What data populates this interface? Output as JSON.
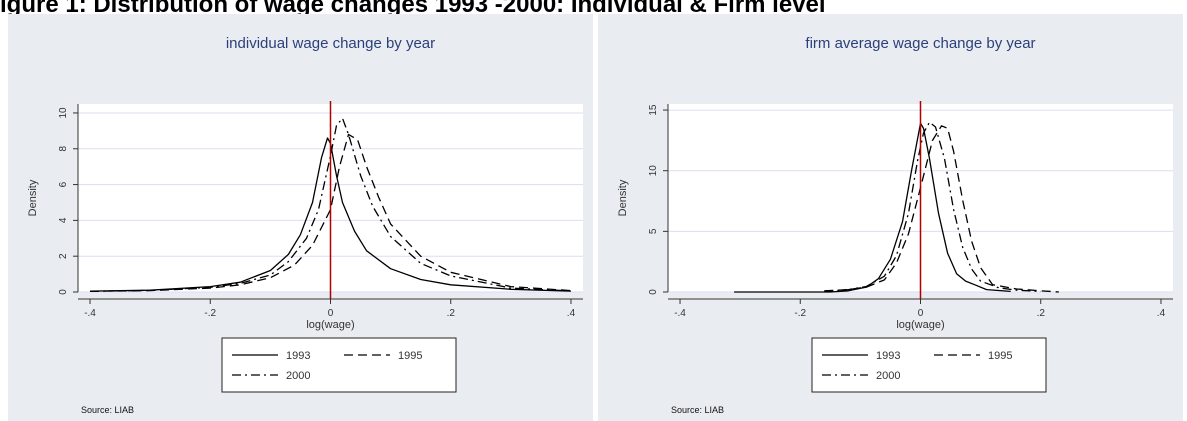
{
  "page_heading": "igure 1: Distribution of wage changes 1993 -2000: Individual & Firm level",
  "chart_data": [
    {
      "type": "line",
      "title": "individual wage  change by year",
      "xlabel": "log(wage)",
      "ylabel": "Density",
      "xlim": [
        -0.42,
        0.42
      ],
      "ylim": [
        0,
        10.5
      ],
      "xticks": [
        -0.4,
        -0.2,
        0,
        0.2,
        0.4
      ],
      "xtick_labels": [
        "-.4",
        "-.2",
        "0",
        ".2",
        ".4"
      ],
      "yticks": [
        0,
        2,
        4,
        6,
        8,
        10
      ],
      "ytick_labels": [
        "0",
        "2",
        "4",
        "6",
        "8",
        "10"
      ],
      "grid": "horizontal",
      "reference_line": {
        "x": 0,
        "color": "#b00000"
      },
      "legend_position": "bottom",
      "series": [
        {
          "name": "1993",
          "dash": "solid",
          "x": [
            -0.4,
            -0.3,
            -0.2,
            -0.15,
            -0.1,
            -0.07,
            -0.05,
            -0.03,
            -0.015,
            -0.005,
            0,
            0.01,
            0.02,
            0.04,
            0.06,
            0.1,
            0.15,
            0.2,
            0.3,
            0.4
          ],
          "y": [
            0.05,
            0.1,
            0.3,
            0.55,
            1.2,
            2.1,
            3.2,
            5.0,
            7.5,
            8.6,
            8.3,
            6.5,
            5.0,
            3.4,
            2.3,
            1.3,
            0.7,
            0.4,
            0.15,
            0.05
          ]
        },
        {
          "name": "1995",
          "dash": "long-dash",
          "x": [
            -0.4,
            -0.3,
            -0.2,
            -0.15,
            -0.1,
            -0.06,
            -0.03,
            0,
            0.015,
            0.03,
            0.045,
            0.06,
            0.08,
            0.1,
            0.15,
            0.2,
            0.3,
            0.4
          ],
          "y": [
            0.04,
            0.08,
            0.22,
            0.4,
            0.8,
            1.5,
            2.6,
            4.6,
            7.0,
            8.8,
            8.5,
            7.0,
            5.3,
            3.8,
            2.0,
            1.1,
            0.3,
            0.08
          ]
        },
        {
          "name": "2000",
          "dash": "dash-dot",
          "x": [
            -0.4,
            -0.3,
            -0.2,
            -0.15,
            -0.1,
            -0.07,
            -0.04,
            -0.02,
            0,
            0.01,
            0.02,
            0.03,
            0.05,
            0.07,
            0.1,
            0.15,
            0.2,
            0.3,
            0.4
          ],
          "y": [
            0.04,
            0.09,
            0.26,
            0.48,
            0.95,
            1.7,
            3.0,
            4.6,
            7.6,
            9.3,
            9.7,
            8.8,
            6.5,
            4.8,
            3.1,
            1.6,
            0.9,
            0.22,
            0.06
          ]
        }
      ],
      "source_note": "Source: LIAB"
    },
    {
      "type": "line",
      "title": "firm average wage  change by year",
      "xlabel": "log(wage)",
      "ylabel": "Density",
      "xlim": [
        -0.42,
        0.42
      ],
      "ylim": [
        0,
        15.5
      ],
      "xticks": [
        -0.4,
        -0.2,
        0,
        0.2,
        0.4
      ],
      "xtick_labels": [
        "-.4",
        "-.2",
        "0",
        ".2",
        ".4"
      ],
      "yticks": [
        0,
        5,
        10,
        15
      ],
      "ytick_labels": [
        "0",
        "5",
        "10",
        "15"
      ],
      "grid": "horizontal",
      "reference_line": {
        "x": 0,
        "color": "#b00000"
      },
      "legend_position": "bottom",
      "series": [
        {
          "name": "1993",
          "dash": "solid",
          "x": [
            -0.31,
            -0.15,
            -0.12,
            -0.09,
            -0.07,
            -0.05,
            -0.03,
            -0.015,
            0,
            0.005,
            0.015,
            0.03,
            0.045,
            0.06,
            0.075,
            0.09,
            0.11,
            0.15
          ],
          "y": [
            0,
            0,
            0.1,
            0.4,
            1.1,
            2.7,
            5.8,
            10.0,
            13.9,
            13.5,
            11.0,
            6.5,
            3.2,
            1.5,
            0.9,
            0.6,
            0.2,
            0.05
          ]
        },
        {
          "name": "1995",
          "dash": "long-dash",
          "x": [
            -0.16,
            -0.12,
            -0.09,
            -0.06,
            -0.04,
            -0.02,
            0,
            0.02,
            0.035,
            0.045,
            0.055,
            0.07,
            0.085,
            0.1,
            0.12,
            0.16,
            0.2,
            0.23
          ],
          "y": [
            0.1,
            0.2,
            0.4,
            1.0,
            2.4,
            4.8,
            8.6,
            12.5,
            13.7,
            13.5,
            11.6,
            7.6,
            4.2,
            2.0,
            0.6,
            0.25,
            0.1,
            0
          ]
        },
        {
          "name": "2000",
          "dash": "dash-dot",
          "x": [
            -0.16,
            -0.12,
            -0.09,
            -0.06,
            -0.04,
            -0.02,
            -0.005,
            0.005,
            0.015,
            0.025,
            0.04,
            0.055,
            0.07,
            0.085,
            0.1,
            0.13,
            0.16,
            0.2
          ],
          "y": [
            0.05,
            0.2,
            0.45,
            1.3,
            3.0,
            6.5,
            10.8,
            13.1,
            14.0,
            13.6,
            11.0,
            6.8,
            3.7,
            1.9,
            0.9,
            0.35,
            0.15,
            0.05
          ]
        }
      ],
      "source_note": "Source: LIAB"
    }
  ]
}
